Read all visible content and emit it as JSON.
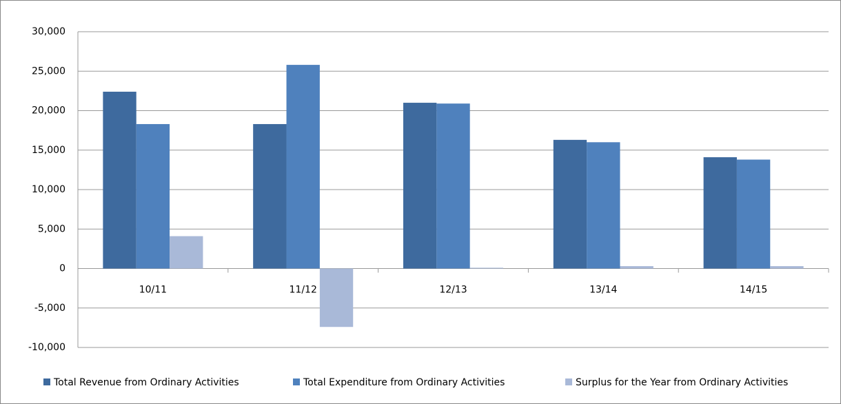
{
  "chart_data": {
    "type": "bar",
    "categories": [
      "10/11",
      "11/12",
      "12/13",
      "13/14",
      "14/15"
    ],
    "series": [
      {
        "name": "Total Revenue from Ordinary Activities",
        "color": "#3e6a9e",
        "values": [
          22400,
          18300,
          21000,
          16300,
          14100
        ]
      },
      {
        "name": "Total Expenditure from Ordinary Activities",
        "color": "#4f81bd",
        "values": [
          18300,
          25800,
          20900,
          16000,
          13800
        ]
      },
      {
        "name": "Surplus for the Year from Ordinary Activities",
        "color": "#a9b9d8",
        "values": [
          4100,
          -7400,
          100,
          300,
          300
        ]
      }
    ],
    "ylim": [
      -10000,
      30000
    ],
    "yticks": [
      {
        "value": -10000,
        "label": "-10,000"
      },
      {
        "value": -5000,
        "label": "-5,000"
      },
      0,
      {
        "value": 5000,
        "label": "5,000"
      },
      {
        "value": 10000,
        "label": "10,000"
      },
      {
        "value": 15000,
        "label": "15,000"
      },
      {
        "value": 20000,
        "label": "20,000"
      },
      {
        "value": 25000,
        "label": "25,000"
      },
      {
        "value": 30000,
        "label": "30,000"
      }
    ],
    "grid": true,
    "legend": "bottom",
    "negative_tick_color": "#ff0000"
  }
}
